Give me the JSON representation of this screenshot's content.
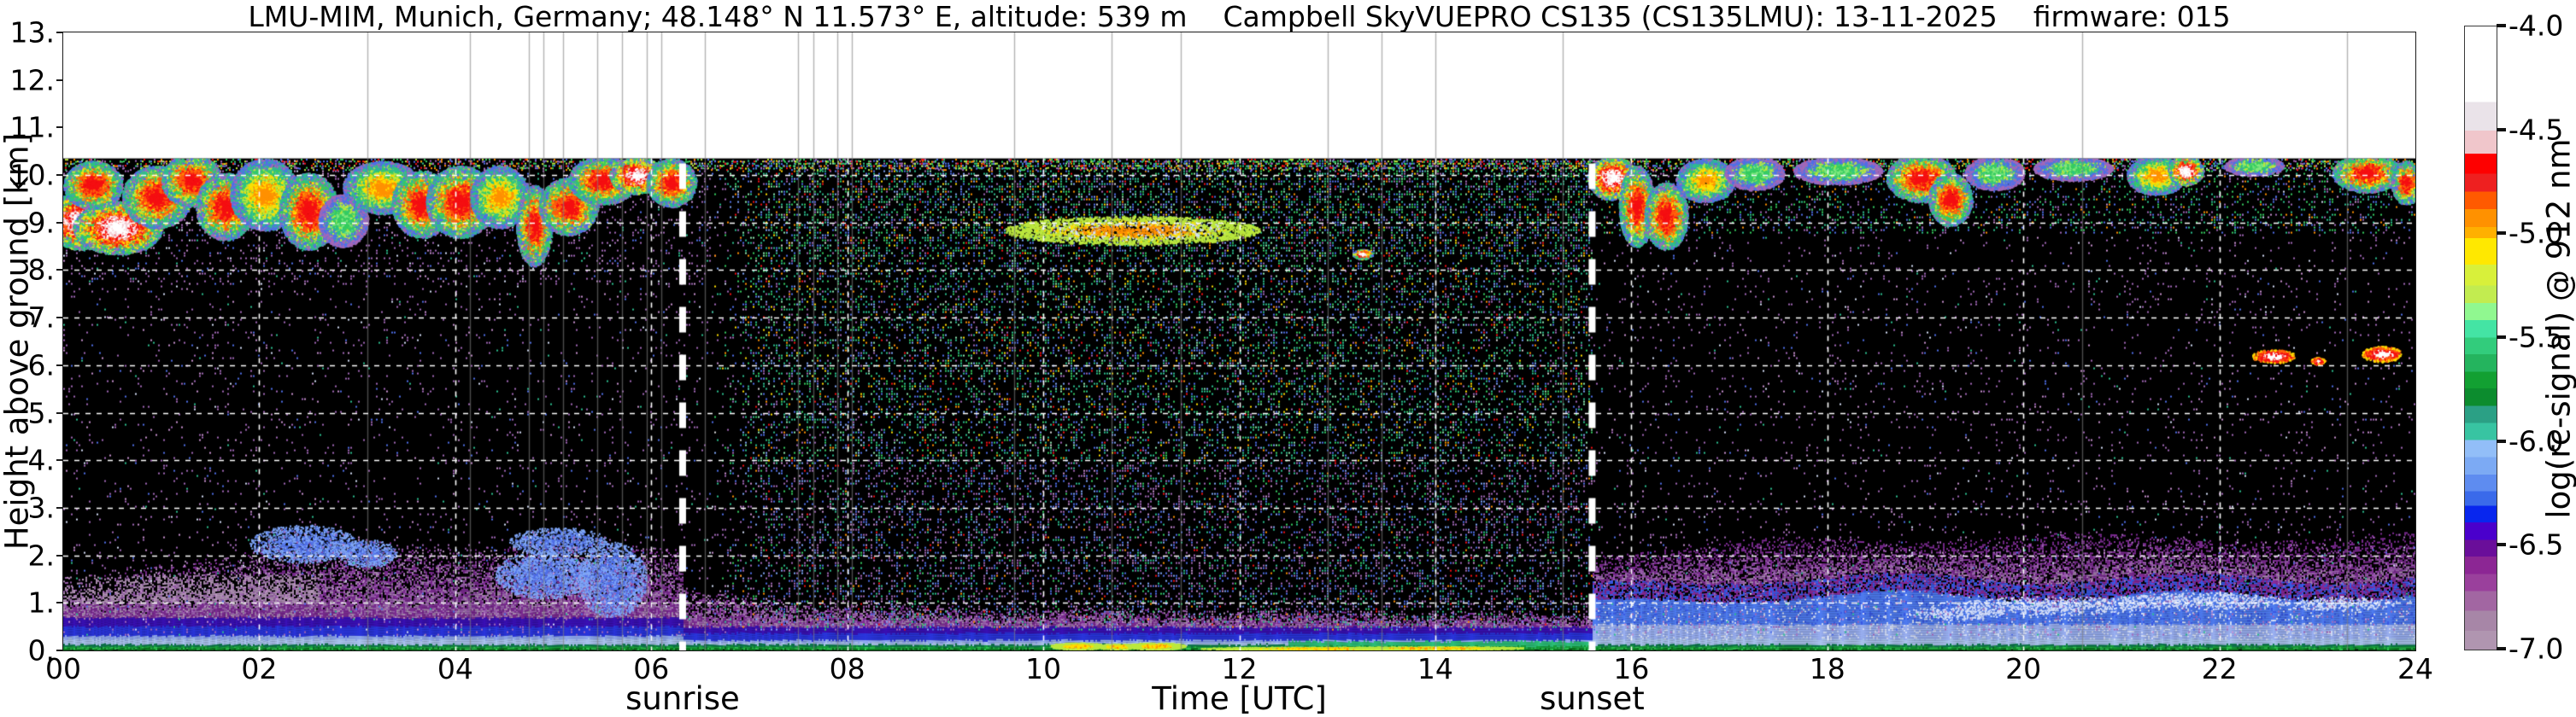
{
  "chart_data": {
    "type": "heatmap",
    "title": "LMU-MIM, Munich, Germany; 48.148° N 11.573° E, altitude: 539 m    Campbell SkyVUEPRO CS135 (CS135LMU): 13-11-2025    firmware: 015",
    "xlabel": "Time [UTC]",
    "ylabel": "Height above ground [km]",
    "x_range_hours": [
      0,
      24
    ],
    "y_range_km": [
      0,
      13
    ],
    "grid": true,
    "x_ticks": [
      {
        "hour": 0,
        "label": "00"
      },
      {
        "hour": 2,
        "label": "02"
      },
      {
        "hour": 4,
        "label": "04"
      },
      {
        "hour": 6,
        "label": "06"
      },
      {
        "hour": 8,
        "label": "08"
      },
      {
        "hour": 10,
        "label": "10"
      },
      {
        "hour": 12,
        "label": "12"
      },
      {
        "hour": 14,
        "label": "14"
      },
      {
        "hour": 16,
        "label": "16"
      },
      {
        "hour": 18,
        "label": "18"
      },
      {
        "hour": 20,
        "label": "20"
      },
      {
        "hour": 22,
        "label": "22"
      },
      {
        "hour": 24,
        "label": "24"
      }
    ],
    "y_ticks": [
      {
        "km": 0,
        "label": "0."
      },
      {
        "km": 1,
        "label": "1."
      },
      {
        "km": 2,
        "label": "2."
      },
      {
        "km": 3,
        "label": "3."
      },
      {
        "km": 4,
        "label": "4."
      },
      {
        "km": 5,
        "label": "5."
      },
      {
        "km": 6,
        "label": "6."
      },
      {
        "km": 7,
        "label": "7."
      },
      {
        "km": 8,
        "label": "8."
      },
      {
        "km": 9,
        "label": "9."
      },
      {
        "km": 10,
        "label": "10."
      },
      {
        "km": 11,
        "label": "11."
      },
      {
        "km": 12,
        "label": "12."
      },
      {
        "km": 13,
        "label": "13."
      }
    ],
    "sun_events": [
      {
        "name": "sunrise",
        "label": "sunrise",
        "hour_utc": 6.32
      },
      {
        "name": "sunset",
        "label": "sunset",
        "hour_utc": 15.6
      }
    ],
    "colorbar": {
      "label": "log(rc-signal) @ 912 nm",
      "value_top": -4.0,
      "value_bottom": -7.0,
      "ticks": [
        {
          "value": -4.0,
          "label": "-4.0"
        },
        {
          "value": -4.5,
          "label": "-4.5"
        },
        {
          "value": -5.0,
          "label": "-5.0"
        },
        {
          "value": -5.5,
          "label": "-5.5"
        },
        {
          "value": -6.0,
          "label": "-6.0"
        },
        {
          "value": -6.5,
          "label": "-6.5"
        },
        {
          "value": -7.0,
          "label": "-7.0"
        }
      ],
      "stops": [
        [
          "#ffffff",
          0.121
        ],
        [
          "#eae3e9",
          0.167
        ],
        [
          "#f0c6cb",
          0.204
        ],
        [
          "#fe0000",
          0.236
        ],
        [
          "#ee2020",
          0.265
        ],
        [
          "#ff5a00",
          0.293
        ],
        [
          "#ff9100",
          0.322
        ],
        [
          "#ffb000",
          0.34
        ],
        [
          "#ffe800",
          0.382
        ],
        [
          "#d8f03a",
          0.416
        ],
        [
          "#c2ec50",
          0.444
        ],
        [
          "#90f890",
          0.471
        ],
        [
          "#44e4a4",
          0.499
        ],
        [
          "#32cc7c",
          0.526
        ],
        [
          "#24b45e",
          0.554
        ],
        [
          "#12a032",
          0.581
        ],
        [
          "#0c8c2e",
          0.609
        ],
        [
          "#2ba085",
          0.636
        ],
        [
          "#38c4a2",
          0.664
        ],
        [
          "#92bef8",
          0.691
        ],
        [
          "#7caaf4",
          0.719
        ],
        [
          "#5e8cf0",
          0.746
        ],
        [
          "#3a6aea",
          0.769
        ],
        [
          "#0826ee",
          0.796
        ],
        [
          "#4a00cc",
          0.824
        ],
        [
          "#6a0e9a",
          0.851
        ],
        [
          "#8c2694",
          0.879
        ],
        [
          "#9a409c",
          0.906
        ],
        [
          "#a266a2",
          0.938
        ],
        [
          "#a786a7",
          0.97
        ],
        [
          "#b095b0",
          1.0
        ]
      ]
    },
    "heatmap": {
      "seed": 20251113,
      "top_km": 10.35,
      "grid_hours": [
        2,
        4,
        6,
        8,
        10,
        12,
        14,
        16,
        18,
        20,
        22
      ],
      "grid_km": [
        1,
        2,
        3,
        4,
        5,
        6,
        7,
        8,
        9,
        10
      ],
      "gap_hours": [
        3.1,
        4.15,
        4.75,
        4.9,
        5.1,
        5.45,
        5.7,
        5.95,
        6.1,
        6.55,
        7.5,
        7.65,
        7.9,
        8.05,
        9.7,
        10.7,
        11.4,
        12.9,
        13.45,
        14.0,
        15.3,
        20.6,
        23.3
      ],
      "day_field": {
        "start": 6.6,
        "full": 7.2,
        "density": 0.32
      },
      "clouds": [
        [
          0.18,
          9.05,
          0.38,
          0.6,
          "w"
        ],
        [
          0.55,
          8.9,
          0.45,
          0.55,
          "w"
        ],
        [
          0.3,
          9.8,
          0.3,
          0.5,
          "r"
        ],
        [
          0.95,
          9.55,
          0.35,
          0.65,
          "r"
        ],
        [
          1.3,
          9.9,
          0.3,
          0.55,
          "r"
        ],
        [
          1.65,
          9.35,
          0.3,
          0.7,
          "r"
        ],
        [
          2.05,
          9.6,
          0.35,
          0.75,
          "o"
        ],
        [
          2.5,
          9.25,
          0.3,
          0.8,
          "r"
        ],
        [
          2.85,
          9.05,
          0.25,
          0.55,
          "g"
        ],
        [
          3.25,
          9.75,
          0.4,
          0.55,
          "o"
        ],
        [
          3.65,
          9.4,
          0.3,
          0.7,
          "r"
        ],
        [
          4.05,
          9.45,
          0.35,
          0.75,
          "r"
        ],
        [
          4.45,
          9.55,
          0.3,
          0.65,
          "o"
        ],
        [
          4.8,
          8.95,
          0.18,
          0.85,
          "r"
        ],
        [
          5.15,
          9.35,
          0.3,
          0.6,
          "r"
        ],
        [
          5.5,
          9.9,
          0.35,
          0.5,
          "r"
        ],
        [
          5.85,
          10.0,
          0.28,
          0.38,
          "w"
        ],
        [
          6.2,
          9.85,
          0.25,
          0.5,
          "r"
        ],
        [
          15.8,
          9.95,
          0.25,
          0.45,
          "w"
        ],
        [
          16.05,
          9.35,
          0.18,
          0.85,
          "r"
        ],
        [
          16.35,
          9.15,
          0.22,
          0.7,
          "r"
        ],
        [
          16.75,
          9.9,
          0.3,
          0.45,
          "o"
        ],
        [
          17.25,
          10.05,
          0.3,
          0.35,
          "g"
        ],
        [
          18.1,
          10.1,
          0.45,
          0.28,
          "g"
        ],
        [
          18.95,
          9.95,
          0.35,
          0.5,
          "r"
        ],
        [
          19.25,
          9.5,
          0.22,
          0.55,
          "r"
        ],
        [
          19.7,
          10.05,
          0.3,
          0.35,
          "g"
        ],
        [
          20.5,
          10.15,
          0.4,
          0.25,
          "g"
        ],
        [
          21.35,
          10.0,
          0.3,
          0.4,
          "o"
        ],
        [
          21.65,
          10.1,
          0.18,
          0.3,
          "w"
        ],
        [
          22.35,
          10.2,
          0.3,
          0.2,
          "g"
        ],
        [
          23.5,
          10.05,
          0.35,
          0.4,
          "r"
        ],
        [
          23.9,
          9.85,
          0.15,
          0.45,
          "r"
        ],
        [
          22.55,
          6.2,
          0.22,
          0.14,
          "wr"
        ],
        [
          23.0,
          6.1,
          0.07,
          0.07,
          "wr"
        ],
        [
          23.65,
          6.25,
          0.2,
          0.16,
          "wr"
        ],
        [
          10.9,
          8.85,
          1.3,
          0.3,
          "f"
        ],
        [
          13.25,
          8.35,
          0.1,
          0.1,
          "w"
        ]
      ],
      "night_blue_patches": [
        [
          2.45,
          2.25,
          0.55,
          0.4
        ],
        [
          3.1,
          2.05,
          0.3,
          0.3
        ],
        [
          4.9,
          1.6,
          0.5,
          0.5
        ],
        [
          5.6,
          1.5,
          0.35,
          0.8
        ],
        [
          5.05,
          2.3,
          0.5,
          0.3
        ]
      ],
      "evening_wisps": [
        [
          19.3,
          0.8,
          0.5,
          0.15
        ],
        [
          20.3,
          0.95,
          1.0,
          0.2
        ],
        [
          21.8,
          1.05,
          0.9,
          0.18
        ],
        [
          23.2,
          1.0,
          0.6,
          0.15
        ]
      ],
      "bl_yellow_patches": [
        [
          10.35,
          0.1,
          0.28,
          0.07
        ],
        [
          10.75,
          0.09,
          0.2,
          0.06
        ],
        [
          11.15,
          0.1,
          0.3,
          0.07
        ],
        [
          12.9,
          0.05,
          1.3,
          0.03
        ],
        [
          14.0,
          0.06,
          0.9,
          0.03
        ]
      ],
      "bl": {
        "night_top": 2.25,
        "day_top": 0.95,
        "evening_top": 2.45,
        "evening_blue_top": 1.15,
        "ground_bands": [
          [
            0.012,
            "#062c0d"
          ],
          [
            0.05,
            "#0c7c20"
          ],
          [
            0.065,
            "#2fc653"
          ],
          [
            0.1,
            "#17a03c"
          ],
          [
            0.135,
            "#0f7a50"
          ],
          [
            0.25,
            "#aac4ee"
          ],
          [
            0.32,
            "#8fa8f0"
          ],
          [
            0.52,
            "#2a35dd"
          ],
          [
            0.7,
            "#3a10b5"
          ]
        ]
      },
      "palette": {
        "white": "#ffffff",
        "whiteSpk": "#d8d8d8",
        "pinkCloud": "#f3cdd3",
        "red": "#f50f12",
        "orangeRed": "#ff5a0d",
        "orange": "#ff9100",
        "yellow": "#ffdf00",
        "yellowGreen": "#bce83e",
        "springGreen": "#7fe87f",
        "green": "#35cc5f",
        "lgreen": "#8de8b0",
        "teal": "#2cbf8e",
        "tealGreen": "#2cc27a",
        "blue": "#4f6fe8",
        "skyBlue": "#7fa6f8",
        "purple": "#7c2b92",
        "purple2": "#9a5fae",
        "mauve": "#a98ab0",
        "mauve2": "#b696ba",
        "magenta": "#8a2a9a",
        "purpleSpk": "#a268b8",
        "pinkSpk": "#c791cf",
        "paleWhite": "#d4def8",
        "evePale": "#9ab0f2",
        "eveBlue": "#4f7cf2",
        "eveBlue2": "#3a5ae8"
      }
    }
  }
}
